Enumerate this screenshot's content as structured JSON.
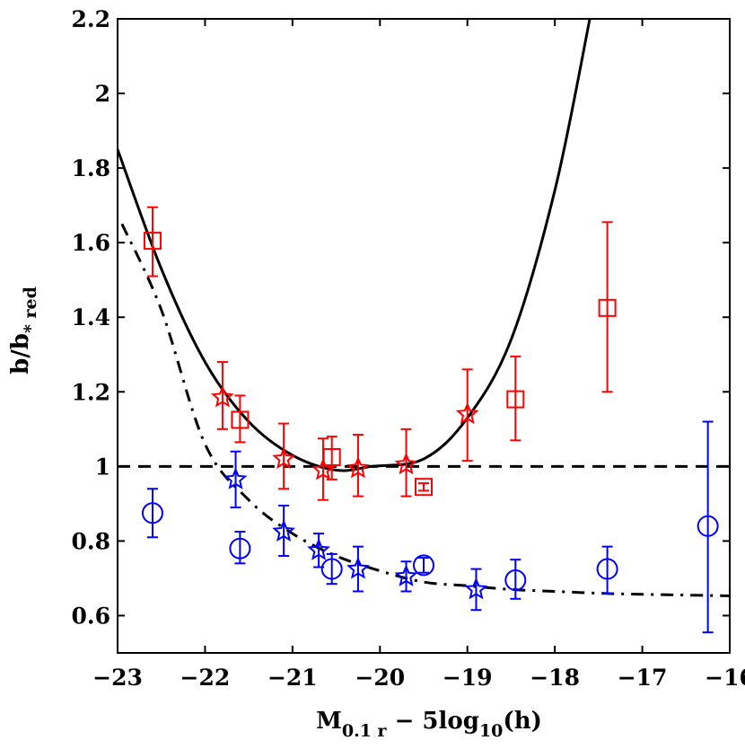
{
  "chart_data": {
    "type": "scatter",
    "title": "",
    "xlabel": {
      "main": "M",
      "sub": "0.1 r",
      "mid": " − 5log",
      "sub2": "10",
      "tail": "(h)"
    },
    "ylabel": {
      "main": "b/b",
      "sub": "* red"
    },
    "xlim": [
      -23,
      -16
    ],
    "ylim": [
      0.5,
      2.2
    ],
    "xticks": [
      -23,
      -22,
      -21,
      -20,
      -19,
      -18,
      -17,
      -16
    ],
    "xtick_labels": [
      "−23",
      "−22",
      "−21",
      "−20",
      "−19",
      "−18",
      "−17",
      "−16"
    ],
    "yticks": [
      0.6,
      0.8,
      1,
      1.2,
      1.4,
      1.6,
      1.8,
      2,
      2.2
    ],
    "ytick_labels": [
      "0.6",
      "0.8",
      "1",
      "1.2",
      "1.4",
      "1.6",
      "1.8",
      "2",
      "2.2"
    ],
    "colors": {
      "red": "#ff0000",
      "blue": "#0000ff",
      "black": "#000000"
    },
    "series": [
      {
        "name": "red squares",
        "color": "#ff0000",
        "marker": "square",
        "points": [
          {
            "x": -22.6,
            "y": 1.605,
            "lo": 1.51,
            "hi": 1.695
          },
          {
            "x": -21.6,
            "y": 1.125,
            "lo": 1.065,
            "hi": 1.19
          },
          {
            "x": -20.55,
            "y": 1.025,
            "lo": 0.965,
            "hi": 1.08
          },
          {
            "x": -19.5,
            "y": 0.945,
            "lo": 0.935,
            "hi": 0.955
          },
          {
            "x": -18.45,
            "y": 1.18,
            "lo": 1.07,
            "hi": 1.295
          },
          {
            "x": -17.4,
            "y": 1.425,
            "lo": 1.2,
            "hi": 1.655
          }
        ]
      },
      {
        "name": "red stars",
        "color": "#ff0000",
        "marker": "star",
        "points": [
          {
            "x": -21.8,
            "y": 1.185,
            "lo": 1.1,
            "hi": 1.28
          },
          {
            "x": -21.1,
            "y": 1.02,
            "lo": 0.94,
            "hi": 1.115
          },
          {
            "x": -20.65,
            "y": 0.99,
            "lo": 0.91,
            "hi": 1.075
          },
          {
            "x": -20.25,
            "y": 0.995,
            "lo": 0.92,
            "hi": 1.085
          },
          {
            "x": -19.7,
            "y": 1.005,
            "lo": 0.92,
            "hi": 1.1
          },
          {
            "x": -19.0,
            "y": 1.14,
            "lo": 1.015,
            "hi": 1.26
          }
        ]
      },
      {
        "name": "blue circles",
        "color": "#0000ff",
        "marker": "circle",
        "points": [
          {
            "x": -22.6,
            "y": 0.875,
            "lo": 0.81,
            "hi": 0.94
          },
          {
            "x": -21.6,
            "y": 0.78,
            "lo": 0.74,
            "hi": 0.825
          },
          {
            "x": -20.55,
            "y": 0.725,
            "lo": 0.685,
            "hi": 0.765
          },
          {
            "x": -19.5,
            "y": 0.735,
            "lo": 0.715,
            "hi": 0.755
          },
          {
            "x": -18.45,
            "y": 0.695,
            "lo": 0.645,
            "hi": 0.75
          },
          {
            "x": -17.4,
            "y": 0.725,
            "lo": 0.66,
            "hi": 0.785
          },
          {
            "x": -16.25,
            "y": 0.84,
            "lo": 0.555,
            "hi": 1.12
          }
        ]
      },
      {
        "name": "blue stars",
        "color": "#0000ff",
        "marker": "star",
        "points": [
          {
            "x": -21.65,
            "y": 0.965,
            "lo": 0.89,
            "hi": 1.04
          },
          {
            "x": -21.1,
            "y": 0.825,
            "lo": 0.76,
            "hi": 0.895
          },
          {
            "x": -20.7,
            "y": 0.775,
            "lo": 0.73,
            "hi": 0.82
          },
          {
            "x": -20.25,
            "y": 0.725,
            "lo": 0.665,
            "hi": 0.785
          },
          {
            "x": -19.7,
            "y": 0.705,
            "lo": 0.665,
            "hi": 0.745
          },
          {
            "x": -18.9,
            "y": 0.67,
            "lo": 0.615,
            "hi": 0.725
          }
        ]
      }
    ],
    "lines": [
      {
        "name": "solid parabola fit",
        "style": "solid",
        "color": "#000000",
        "x": [
          -23,
          -22.5,
          -22,
          -21.5,
          -21,
          -20.5,
          -20.1,
          -19.5,
          -19,
          -18.5,
          -18,
          -17.6
        ],
        "y": [
          1.85,
          1.53,
          1.28,
          1.12,
          1.03,
          0.99,
          1.0,
          1.02,
          1.13,
          1.34,
          1.74,
          2.2
        ]
      },
      {
        "name": "dashed reference at 1",
        "style": "dashed",
        "color": "#000000",
        "x": [
          -23,
          -16
        ],
        "y": [
          1,
          1
        ]
      },
      {
        "name": "dash-dot fit",
        "style": "dashdot",
        "color": "#000000",
        "x": [
          -22.95,
          -22.5,
          -22,
          -21.5,
          -21,
          -20.5,
          -20,
          -19.5,
          -19,
          -18.5,
          -18,
          -17.5,
          -17,
          -16.5,
          -16
        ],
        "y": [
          1.65,
          1.42,
          1.06,
          0.91,
          0.82,
          0.76,
          0.72,
          0.69,
          0.68,
          0.67,
          0.665,
          0.66,
          0.657,
          0.655,
          0.653
        ]
      }
    ]
  }
}
